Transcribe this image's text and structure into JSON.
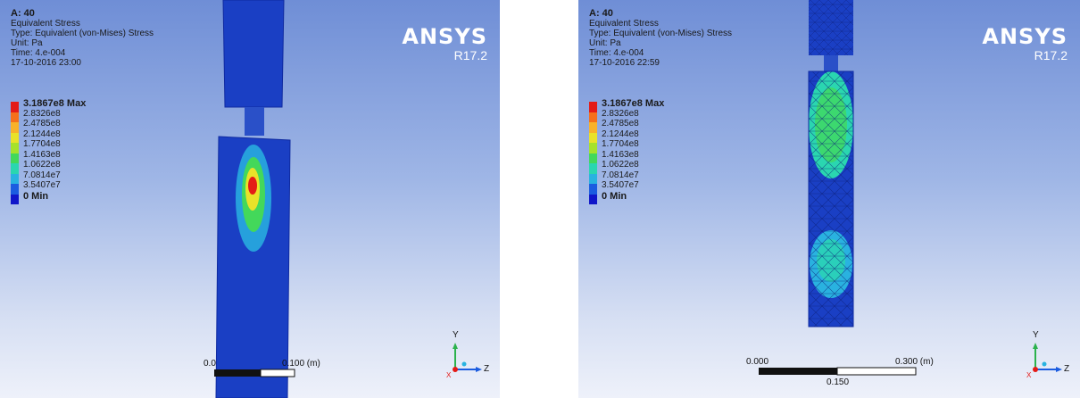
{
  "left_view": {
    "info": {
      "title": "A: 40",
      "lines": [
        "Equivalent Stress",
        "Type: Equivalent (von-Mises) Stress",
        "Unit: Pa",
        "Time: 4.e-004",
        "17-10-2016 23:00"
      ]
    },
    "legend": [
      {
        "label": "3.1867e8 Max",
        "color": "#e41b17"
      },
      {
        "label": "2.8326e8",
        "color": "#f5701b"
      },
      {
        "label": "2.4785e8",
        "color": "#f8b22a"
      },
      {
        "label": "2.1244e8",
        "color": "#e9e229"
      },
      {
        "label": "1.7704e8",
        "color": "#a6e22b"
      },
      {
        "label": "1.4163e8",
        "color": "#43d85a"
      },
      {
        "label": "1.0622e8",
        "color": "#2ad6b0"
      },
      {
        "label": "7.0814e7",
        "color": "#29b2e0"
      },
      {
        "label": "3.5407e7",
        "color": "#1b5ce0"
      },
      {
        "label": "0 Min",
        "color": "#1016c9"
      }
    ],
    "brand": {
      "name": "ANSYS",
      "version": "R17.2"
    },
    "scale_bar": {
      "start": "0.0",
      "end": "0.100 (m)"
    },
    "axes": {
      "y": "Y",
      "z": "Z",
      "x": "X"
    }
  },
  "right_view": {
    "info": {
      "title": "A: 40",
      "lines": [
        "Equivalent Stress",
        "Type: Equivalent (von-Mises) Stress",
        "Unit: Pa",
        "Time: 4.e-004",
        "17-10-2016 22:59"
      ]
    },
    "legend": [
      {
        "label": "3.1867e8 Max",
        "color": "#e41b17"
      },
      {
        "label": "2.8326e8",
        "color": "#f5701b"
      },
      {
        "label": "2.4785e8",
        "color": "#f8b22a"
      },
      {
        "label": "2.1244e8",
        "color": "#e9e229"
      },
      {
        "label": "1.7704e8",
        "color": "#a6e22b"
      },
      {
        "label": "1.4163e8",
        "color": "#43d85a"
      },
      {
        "label": "1.0622e8",
        "color": "#2ad6b0"
      },
      {
        "label": "7.0814e7",
        "color": "#29b2e0"
      },
      {
        "label": "3.5407e7",
        "color": "#1b5ce0"
      },
      {
        "label": "0 Min",
        "color": "#1016c9"
      }
    ],
    "brand": {
      "name": "ANSYS",
      "version": "R17.2"
    },
    "scale_bar": {
      "start": "0.000",
      "end": "0.300 (m)",
      "mid": "0.150"
    },
    "axes": {
      "y": "Y",
      "z": "Z",
      "x": "X"
    }
  }
}
